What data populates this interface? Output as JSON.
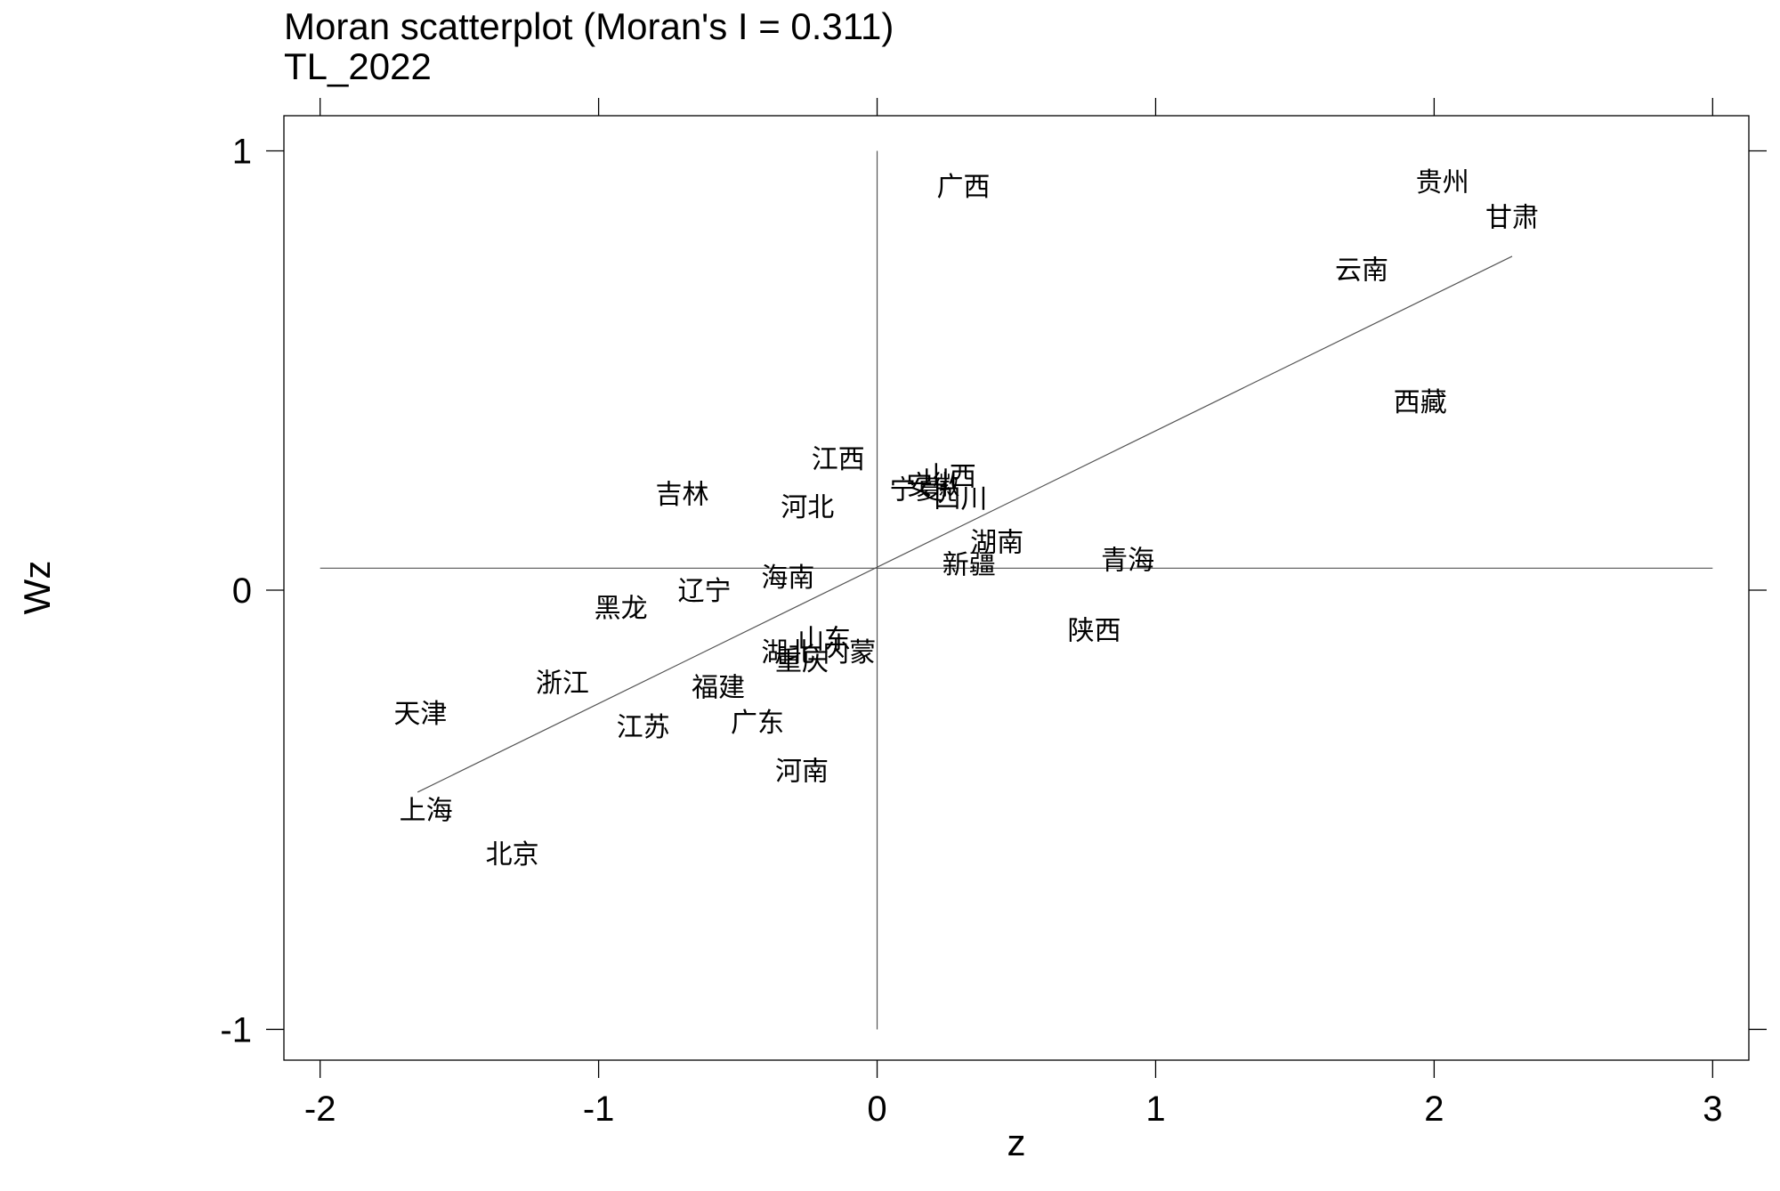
{
  "chart_data": {
    "type": "scatter",
    "title": "Moran scatterplot (Moran's I = 0.311)",
    "subtitle": "TL_2022",
    "xlabel": "z",
    "ylabel": "Wz",
    "xlim": [
      -2.13,
      3.13
    ],
    "ylim": [
      -1.07,
      1.08
    ],
    "xticks": [
      -2,
      -1,
      0,
      1,
      2,
      3
    ],
    "yticks": [
      -1,
      0,
      1
    ],
    "xtick_labels": [
      "-2",
      "-1",
      "0",
      "1",
      "2",
      "3"
    ],
    "ytick_labels": [
      "-1",
      "0",
      "1"
    ],
    "grid": false,
    "reference_lines": {
      "x": 0,
      "y": 0.05
    },
    "fit_line": {
      "x": [
        -1.65,
        2.28
      ],
      "y": [
        -0.46,
        0.76
      ]
    },
    "points": [
      {
        "label": "广西",
        "x": 0.31,
        "y": 0.92
      },
      {
        "label": "贵州",
        "x": 2.03,
        "y": 0.93
      },
      {
        "label": "甘肃",
        "x": 2.28,
        "y": 0.85
      },
      {
        "label": "云南",
        "x": 1.74,
        "y": 0.73
      },
      {
        "label": "西藏",
        "x": 1.95,
        "y": 0.43
      },
      {
        "label": "江西",
        "x": -0.14,
        "y": 0.3
      },
      {
        "label": "吉林",
        "x": -0.7,
        "y": 0.22
      },
      {
        "label": "河北",
        "x": -0.25,
        "y": 0.19
      },
      {
        "label": "山西",
        "x": 0.26,
        "y": 0.26
      },
      {
        "label": "宁夏",
        "x": 0.14,
        "y": 0.23
      },
      {
        "label": "安徽",
        "x": 0.2,
        "y": 0.24
      },
      {
        "label": "四川",
        "x": 0.3,
        "y": 0.21
      },
      {
        "label": "湖南",
        "x": 0.43,
        "y": 0.11
      },
      {
        "label": "新疆",
        "x": 0.33,
        "y": 0.06
      },
      {
        "label": "青海",
        "x": 0.9,
        "y": 0.07
      },
      {
        "label": "海南",
        "x": -0.32,
        "y": 0.03
      },
      {
        "label": "辽宁",
        "x": -0.62,
        "y": 0.0
      },
      {
        "label": "黑龙",
        "x": -0.92,
        "y": -0.04
      },
      {
        "label": "陕西",
        "x": 0.78,
        "y": -0.09
      },
      {
        "label": "山东",
        "x": -0.19,
        "y": -0.11
      },
      {
        "label": "内蒙",
        "x": -0.1,
        "y": -0.14
      },
      {
        "label": "湖北",
        "x": -0.32,
        "y": -0.14
      },
      {
        "label": "重庆",
        "x": -0.27,
        "y": -0.16
      },
      {
        "label": "浙江",
        "x": -1.13,
        "y": -0.21
      },
      {
        "label": "福建",
        "x": -0.57,
        "y": -0.22
      },
      {
        "label": "天津",
        "x": -1.64,
        "y": -0.28
      },
      {
        "label": "江苏",
        "x": -0.84,
        "y": -0.31
      },
      {
        "label": "广东",
        "x": -0.43,
        "y": -0.3
      },
      {
        "label": "河南",
        "x": -0.27,
        "y": -0.41
      },
      {
        "label": "上海",
        "x": -1.62,
        "y": -0.5
      },
      {
        "label": "北京",
        "x": -1.31,
        "y": -0.6
      }
    ]
  }
}
